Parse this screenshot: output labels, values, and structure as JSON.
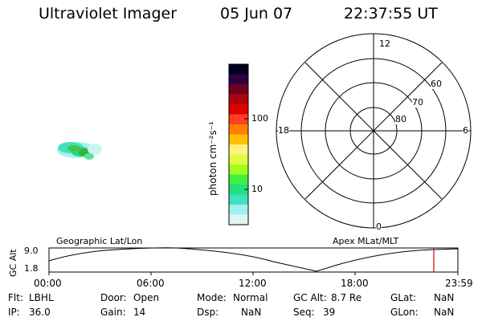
{
  "header": {
    "instrument": "Ultraviolet Imager",
    "date": "05 Jun 07",
    "time": "22:37:55 UT"
  },
  "colorbar": {
    "axis_label": "photon cm⁻²s⁻¹",
    "ticks": [
      "100",
      "10"
    ],
    "colors": [
      "#000020",
      "#300040",
      "#700020",
      "#b00010",
      "#e00000",
      "#ff4020",
      "#ff8000",
      "#ffc000",
      "#fff080",
      "#e0ff40",
      "#a0ff20",
      "#40f040",
      "#20e080",
      "#40e0c0",
      "#a0f0f0",
      "#e0f4f4"
    ]
  },
  "polar": {
    "mlt_labels": {
      "top": "12",
      "left": "18",
      "right": "6",
      "bottom": "0"
    },
    "lat_labels": [
      "60",
      "70",
      "80"
    ]
  },
  "timeline": {
    "left_label": "Geographic Lat/Lon",
    "right_label": "Apex MLat/MLT",
    "axis_title": "GC Alt",
    "y_ticks": [
      "9.0",
      "1.8"
    ],
    "x_ticks": [
      "00:00",
      "06:00",
      "12:00",
      "18:00",
      "23:59"
    ],
    "marker_color": "#d00000"
  },
  "status": {
    "filter_label": "Flt:",
    "filter_value": "LBHL",
    "door_label": "Door:",
    "door_value": "Open",
    "mode_label": "Mode:",
    "mode_value": "Normal",
    "gcalt_label": "GC Alt:",
    "gcalt_value": "8.7 Re",
    "glat_label": "GLat:",
    "glat_value": "NaN",
    "ip_label": "IP:",
    "ip_value": "36.0",
    "gain_label": "Gain:",
    "gain_value": "14",
    "dsp_label": "Dsp:",
    "dsp_value": "NaN",
    "seq_label": "Seq:",
    "seq_value": "39",
    "glon_label": "GLon:",
    "glon_value": "NaN"
  }
}
